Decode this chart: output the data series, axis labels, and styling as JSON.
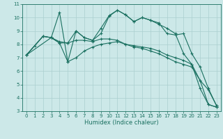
{
  "xlabel": "Humidex (Indice chaleur)",
  "bg_color": "#cce8e8",
  "grid_color": "#aacfcf",
  "line_color": "#1a7060",
  "xlim": [
    -0.5,
    23.5
  ],
  "ylim": [
    3,
    11
  ],
  "xticks": [
    0,
    1,
    2,
    3,
    4,
    5,
    6,
    7,
    8,
    9,
    10,
    11,
    12,
    13,
    14,
    15,
    16,
    17,
    18,
    19,
    20,
    21,
    22,
    23
  ],
  "yticks": [
    3,
    4,
    5,
    6,
    7,
    8,
    9,
    10,
    11
  ],
  "lines": [
    {
      "x": [
        0,
        1,
        2,
        3,
        4,
        5,
        6,
        7,
        8,
        9,
        10,
        11,
        12,
        13,
        14,
        15,
        16,
        17,
        18,
        19,
        20,
        21,
        22,
        23
      ],
      "y": [
        7.2,
        7.9,
        8.6,
        8.5,
        8.1,
        6.7,
        7.0,
        7.5,
        7.8,
        8.0,
        8.1,
        8.2,
        8.0,
        7.9,
        7.8,
        7.7,
        7.5,
        7.2,
        7.0,
        6.8,
        6.5,
        5.3,
        3.5,
        3.3
      ]
    },
    {
      "x": [
        0,
        2,
        3,
        4,
        5,
        6,
        7,
        8,
        9,
        10,
        11,
        12,
        13,
        14,
        15,
        16,
        17,
        18,
        19,
        20,
        21,
        22,
        23
      ],
      "y": [
        7.2,
        8.6,
        8.5,
        8.2,
        8.1,
        9.0,
        8.5,
        8.3,
        9.2,
        10.15,
        10.55,
        10.2,
        9.7,
        10.0,
        9.8,
        9.6,
        8.8,
        8.7,
        8.8,
        7.3,
        6.3,
        4.7,
        3.4
      ]
    },
    {
      "x": [
        0,
        3,
        4,
        5,
        6,
        7,
        8,
        9,
        10,
        11,
        12,
        13,
        14,
        15,
        16,
        17,
        18,
        19,
        20,
        21,
        22,
        23
      ],
      "y": [
        7.2,
        8.5,
        10.4,
        6.7,
        9.0,
        8.5,
        8.3,
        8.8,
        10.1,
        10.55,
        10.2,
        9.7,
        10.0,
        9.8,
        9.5,
        9.2,
        8.8,
        7.3,
        6.5,
        4.7,
        3.5,
        3.3
      ]
    },
    {
      "x": [
        0,
        2,
        3,
        4,
        5,
        6,
        7,
        8,
        9,
        10,
        11,
        12,
        13,
        14,
        15,
        16,
        17,
        18,
        19,
        20,
        21,
        22,
        23
      ],
      "y": [
        7.2,
        8.6,
        8.5,
        8.1,
        8.1,
        8.3,
        8.3,
        8.2,
        8.4,
        8.4,
        8.3,
        8.0,
        7.8,
        7.7,
        7.5,
        7.3,
        7.0,
        6.7,
        6.5,
        6.3,
        5.3,
        4.6,
        3.4
      ]
    }
  ]
}
